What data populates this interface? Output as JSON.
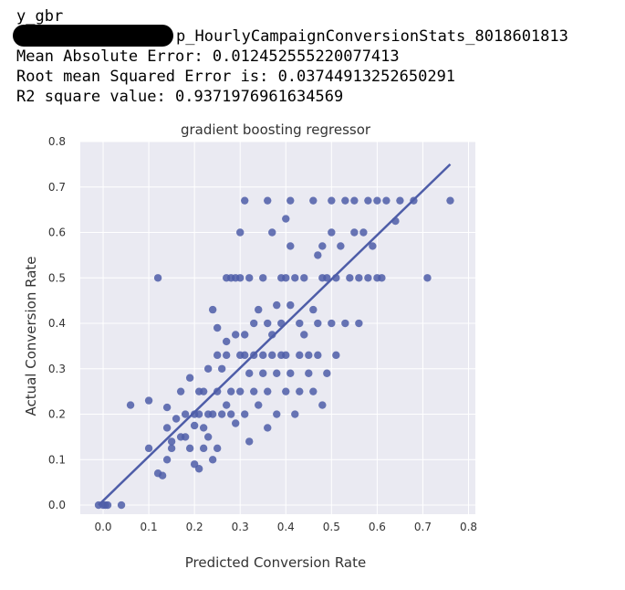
{
  "output_lines": [
    "y_gbr",
    "p_HourlyCampaignConversionStats_8018601813",
    "Mean Absolute Error:  0.012452555220077413",
    "Root mean Squared Error is: 0.03744913252650291",
    "R2 square value:  0.9371976961634569"
  ],
  "chart_data": {
    "type": "scatter",
    "title": "gradient boosting regressor",
    "x_label": "Predicted Conversion Rate",
    "y_label": "Actual Conversion Rate",
    "color": "#4e5da8",
    "grid": true,
    "xlim": [
      -0.05,
      0.815
    ],
    "ylim": [
      -0.02,
      0.8
    ],
    "xticks": [
      {
        "value": 0,
        "label": "0.0"
      },
      0.1,
      0.2,
      0.3,
      0.4,
      0.5,
      0.6,
      0.7,
      {
        "value": 0.8,
        "label": "0.8"
      }
    ],
    "yticks": [
      {
        "value": 0,
        "label": "0.0"
      },
      0.1,
      0.2,
      0.3,
      0.4,
      0.5,
      0.6,
      0.7,
      {
        "value": 0.8,
        "label": "0.8"
      }
    ],
    "regression_x": [
      -0.01,
      0.76
    ],
    "regression_y": [
      0,
      0.75
    ],
    "x": [
      -0.01,
      0,
      0.005,
      0.01,
      0.04,
      0.06,
      0.1,
      0.12,
      0.1,
      0.12,
      0.13,
      0.14,
      0.14,
      0.14,
      0.15,
      0.15,
      0.16,
      0.17,
      0.17,
      0.18,
      0.18,
      0.19,
      0.19,
      0.2,
      0.2,
      0.2,
      0.21,
      0.21,
      0.21,
      0.22,
      0.22,
      0.22,
      0.23,
      0.23,
      0.23,
      0.24,
      0.24,
      0.24,
      0.25,
      0.25,
      0.25,
      0.25,
      0.26,
      0.26,
      0.27,
      0.27,
      0.27,
      0.27,
      0.28,
      0.28,
      0.28,
      0.29,
      0.29,
      0.29,
      0.3,
      0.3,
      0.3,
      0.3,
      0.31,
      0.31,
      0.31,
      0.31,
      0.32,
      0.32,
      0.32,
      0.33,
      0.33,
      0.33,
      0.34,
      0.34,
      0.35,
      0.35,
      0.35,
      0.36,
      0.36,
      0.36,
      0.36,
      0.37,
      0.37,
      0.37,
      0.38,
      0.38,
      0.38,
      0.39,
      0.39,
      0.39,
      0.4,
      0.4,
      0.4,
      0.4,
      0.41,
      0.41,
      0.41,
      0.41,
      0.42,
      0.42,
      0.43,
      0.43,
      0.43,
      0.44,
      0.44,
      0.45,
      0.45,
      0.46,
      0.46,
      0.46,
      0.47,
      0.47,
      0.47,
      0.48,
      0.48,
      0.48,
      0.49,
      0.49,
      0.5,
      0.5,
      0.5,
      0.51,
      0.51,
      0.52,
      0.53,
      0.53,
      0.54,
      0.55,
      0.55,
      0.56,
      0.56,
      0.57,
      0.58,
      0.58,
      0.59,
      0.6,
      0.6,
      0.61,
      0.62,
      0.64,
      0.65,
      0.68,
      0.71,
      0.76
    ],
    "y": [
      0,
      0,
      0,
      0,
      0,
      0.22,
      0.23,
      0.5,
      0.125,
      0.07,
      0.065,
      0.1,
      0.215,
      0.17,
      0.14,
      0.125,
      0.19,
      0.25,
      0.15,
      0.2,
      0.15,
      0.28,
      0.125,
      0.2,
      0.09,
      0.175,
      0.25,
      0.08,
      0.2,
      0.17,
      0.125,
      0.25,
      0.15,
      0.3,
      0.2,
      0.43,
      0.2,
      0.1,
      0.39,
      0.33,
      0.25,
      0.125,
      0.3,
      0.2,
      0.36,
      0.33,
      0.22,
      0.5,
      0.5,
      0.25,
      0.2,
      0.5,
      0.375,
      0.18,
      0.33,
      0.25,
      0.5,
      0.6,
      0.67,
      0.375,
      0.33,
      0.2,
      0.5,
      0.29,
      0.14,
      0.33,
      0.25,
      0.4,
      0.43,
      0.22,
      0.5,
      0.33,
      0.29,
      0.67,
      0.4,
      0.25,
      0.17,
      0.6,
      0.375,
      0.33,
      0.44,
      0.29,
      0.2,
      0.5,
      0.4,
      0.33,
      0.63,
      0.5,
      0.33,
      0.25,
      0.67,
      0.57,
      0.44,
      0.29,
      0.5,
      0.2,
      0.4,
      0.33,
      0.25,
      0.5,
      0.375,
      0.33,
      0.29,
      0.67,
      0.43,
      0.25,
      0.55,
      0.4,
      0.33,
      0.57,
      0.5,
      0.22,
      0.5,
      0.29,
      0.67,
      0.6,
      0.4,
      0.5,
      0.33,
      0.57,
      0.67,
      0.4,
      0.5,
      0.67,
      0.6,
      0.5,
      0.4,
      0.6,
      0.67,
      0.5,
      0.57,
      0.67,
      0.5,
      0.5,
      0.67,
      0.625,
      0.67,
      0.67,
      0.5,
      0.67
    ]
  }
}
